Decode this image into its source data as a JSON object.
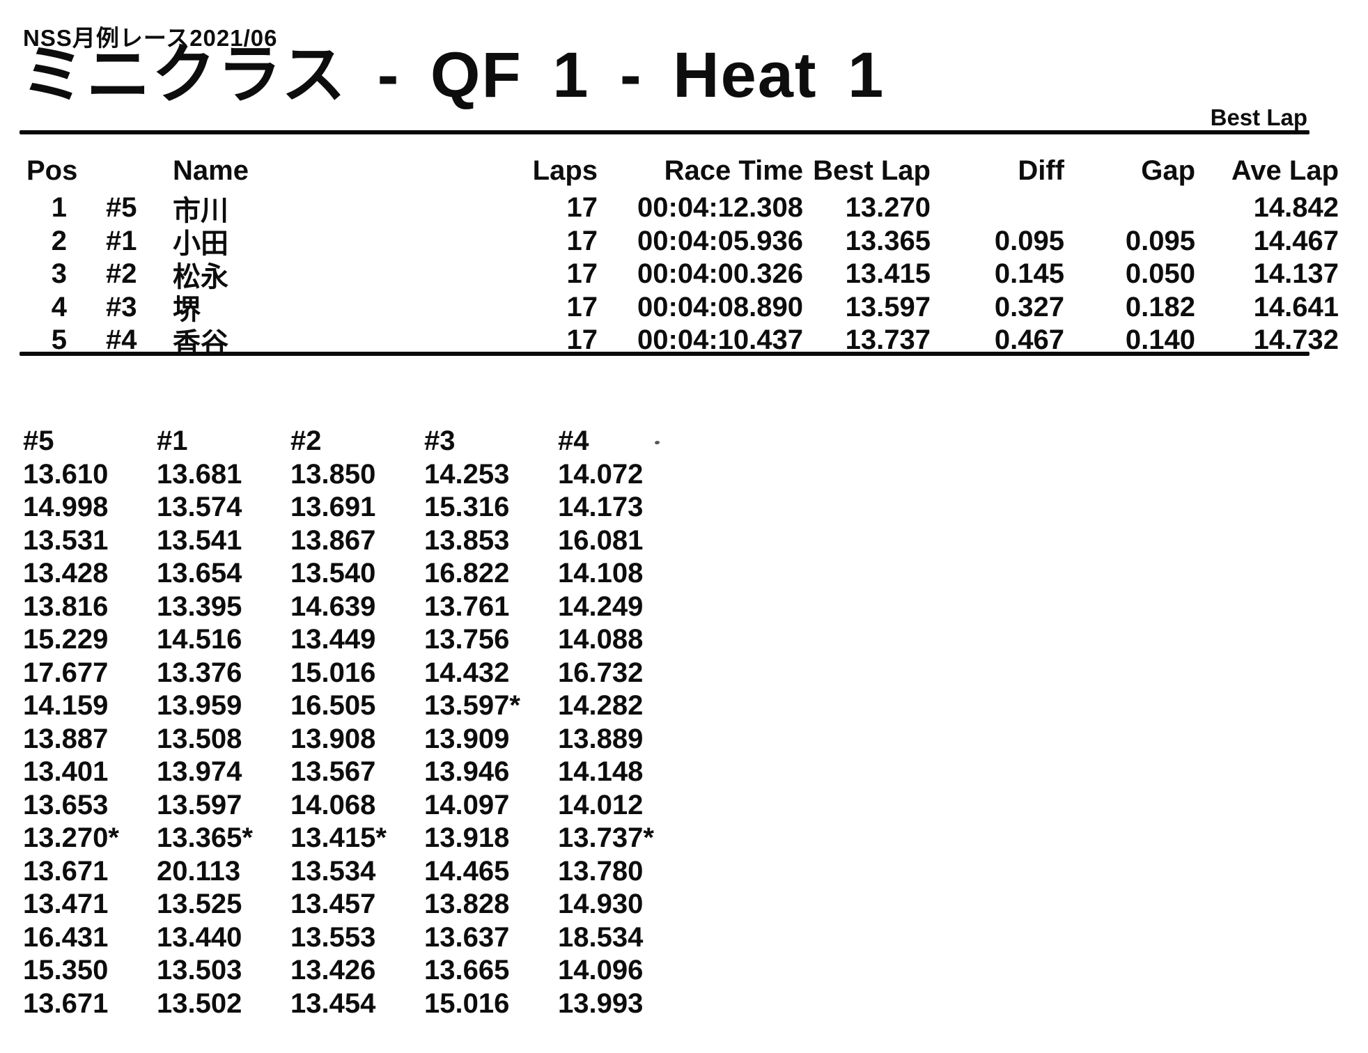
{
  "colors": {
    "ink": "#0d0d0d",
    "paper": "#ffffff"
  },
  "header": {
    "event": "NSS月例レース2021/06",
    "title": "ミニクラス - QF 1 - Heat 1",
    "corner_label": "Best Lap"
  },
  "results": {
    "columns": {
      "pos": "Pos",
      "car": "",
      "name": "Name",
      "laps": "Laps",
      "race_time": "Race Time",
      "best_lap": "Best Lap",
      "diff": "Diff",
      "gap": "Gap",
      "ave_lap": "Ave Lap"
    },
    "rows": [
      {
        "pos": "1",
        "car": "#5",
        "name": "市川",
        "laps": "17",
        "race_time": "00:04:12.308",
        "best_lap": "13.270",
        "diff": "",
        "gap": "",
        "ave_lap": "14.842"
      },
      {
        "pos": "2",
        "car": "#1",
        "name": "小田",
        "laps": "17",
        "race_time": "00:04:05.936",
        "best_lap": "13.365",
        "diff": "0.095",
        "gap": "0.095",
        "ave_lap": "14.467"
      },
      {
        "pos": "3",
        "car": "#2",
        "name": "松永",
        "laps": "17",
        "race_time": "00:04:00.326",
        "best_lap": "13.415",
        "diff": "0.145",
        "gap": "0.050",
        "ave_lap": "14.137"
      },
      {
        "pos": "4",
        "car": "#3",
        "name": "堺",
        "laps": "17",
        "race_time": "00:04:08.890",
        "best_lap": "13.597",
        "diff": "0.327",
        "gap": "0.182",
        "ave_lap": "14.641"
      },
      {
        "pos": "5",
        "car": "#4",
        "name": "香谷",
        "laps": "17",
        "race_time": "00:04:10.437",
        "best_lap": "13.737",
        "diff": "0.467",
        "gap": "0.140",
        "ave_lap": "14.732"
      }
    ]
  },
  "lap_chart": {
    "columns": [
      "#5",
      "#1",
      "#2",
      "#3",
      "#4"
    ],
    "rows": [
      [
        "13.610",
        "13.681",
        "13.850",
        "14.253",
        "14.072"
      ],
      [
        "14.998",
        "13.574",
        "13.691",
        "15.316",
        "14.173"
      ],
      [
        "13.531",
        "13.541",
        "13.867",
        "13.853",
        "16.081"
      ],
      [
        "13.428",
        "13.654",
        "13.540",
        "16.822",
        "14.108"
      ],
      [
        "13.816",
        "13.395",
        "14.639",
        "13.761",
        "14.249"
      ],
      [
        "15.229",
        "14.516",
        "13.449",
        "13.756",
        "14.088"
      ],
      [
        "17.677",
        "13.376",
        "15.016",
        "14.432",
        "16.732"
      ],
      [
        "14.159",
        "13.959",
        "16.505",
        "13.597*",
        "14.282"
      ],
      [
        "13.887",
        "13.508",
        "13.908",
        "13.909",
        "13.889"
      ],
      [
        "13.401",
        "13.974",
        "13.567",
        "13.946",
        "14.148"
      ],
      [
        "13.653",
        "13.597",
        "14.068",
        "14.097",
        "14.012"
      ],
      [
        "13.270*",
        "13.365*",
        "13.415*",
        "13.918",
        "13.737*"
      ],
      [
        "13.671",
        "20.113",
        "13.534",
        "14.465",
        "13.780"
      ],
      [
        "13.471",
        "13.525",
        "13.457",
        "13.828",
        "14.930"
      ],
      [
        "16.431",
        "13.440",
        "13.553",
        "13.637",
        "18.534"
      ],
      [
        "15.350",
        "13.503",
        "13.426",
        "13.665",
        "14.096"
      ],
      [
        "13.671",
        "13.502",
        "13.454",
        "15.016",
        "13.993"
      ]
    ]
  }
}
